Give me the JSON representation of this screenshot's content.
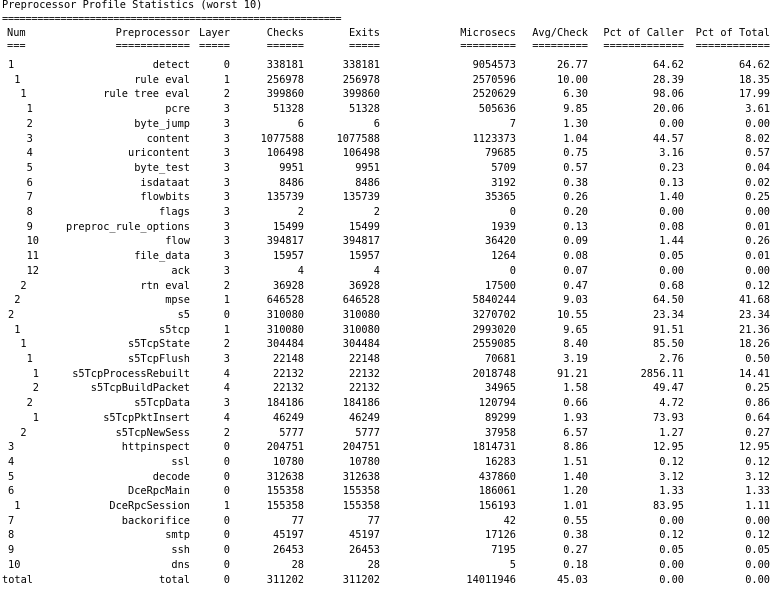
{
  "title": "Preprocessor Profile Statistics (worst 10)",
  "rule": "==========================================================",
  "headers": {
    "num": "Num",
    "name": "Preprocessor",
    "layer": "Layer",
    "checks": "Checks",
    "exits": "Exits",
    "micro": "Microsecs",
    "avg": "Avg/Check",
    "pcaller": "Pct of Caller",
    "ptotal": "Pct of Total"
  },
  "underlines": {
    "num": "===",
    "name": "============",
    "layer": "=====",
    "checks": "======",
    "exits": "=====",
    "micro": "=========",
    "avg": "=========",
    "pcaller": "=============",
    "ptotal": "============"
  },
  "rows": [
    {
      "num": "1",
      "indent": 1,
      "name": "detect",
      "layer": "0",
      "checks": "338181",
      "exits": "338181",
      "micro": "9054573",
      "avg": "26.77",
      "pcaller": "64.62",
      "ptotal": "64.62"
    },
    {
      "num": "1",
      "indent": 2,
      "name": "rule eval",
      "layer": "1",
      "checks": "256978",
      "exits": "256978",
      "micro": "2570596",
      "avg": "10.00",
      "pcaller": "28.39",
      "ptotal": "18.35"
    },
    {
      "num": "1",
      "indent": 3,
      "name": "rule tree eval",
      "layer": "2",
      "checks": "399860",
      "exits": "399860",
      "micro": "2520629",
      "avg": "6.30",
      "pcaller": "98.06",
      "ptotal": "17.99"
    },
    {
      "num": "1",
      "indent": 4,
      "name": "pcre",
      "layer": "3",
      "checks": "51328",
      "exits": "51328",
      "micro": "505636",
      "avg": "9.85",
      "pcaller": "20.06",
      "ptotal": "3.61"
    },
    {
      "num": "2",
      "indent": 4,
      "name": "byte_jump",
      "layer": "3",
      "checks": "6",
      "exits": "6",
      "micro": "7",
      "avg": "1.30",
      "pcaller": "0.00",
      "ptotal": "0.00"
    },
    {
      "num": "3",
      "indent": 4,
      "name": "content",
      "layer": "3",
      "checks": "1077588",
      "exits": "1077588",
      "micro": "1123373",
      "avg": "1.04",
      "pcaller": "44.57",
      "ptotal": "8.02"
    },
    {
      "num": "4",
      "indent": 4,
      "name": "uricontent",
      "layer": "3",
      "checks": "106498",
      "exits": "106498",
      "micro": "79685",
      "avg": "0.75",
      "pcaller": "3.16",
      "ptotal": "0.57"
    },
    {
      "num": "5",
      "indent": 4,
      "name": "byte_test",
      "layer": "3",
      "checks": "9951",
      "exits": "9951",
      "micro": "5709",
      "avg": "0.57",
      "pcaller": "0.23",
      "ptotal": "0.04"
    },
    {
      "num": "6",
      "indent": 4,
      "name": "isdataat",
      "layer": "3",
      "checks": "8486",
      "exits": "8486",
      "micro": "3192",
      "avg": "0.38",
      "pcaller": "0.13",
      "ptotal": "0.02"
    },
    {
      "num": "7",
      "indent": 4,
      "name": "flowbits",
      "layer": "3",
      "checks": "135739",
      "exits": "135739",
      "micro": "35365",
      "avg": "0.26",
      "pcaller": "1.40",
      "ptotal": "0.25"
    },
    {
      "num": "8",
      "indent": 4,
      "name": "flags",
      "layer": "3",
      "checks": "2",
      "exits": "2",
      "micro": "0",
      "avg": "0.20",
      "pcaller": "0.00",
      "ptotal": "0.00"
    },
    {
      "num": "9",
      "indent": 4,
      "name": "preproc_rule_options",
      "layer": "3",
      "checks": "15499",
      "exits": "15499",
      "micro": "1939",
      "avg": "0.13",
      "pcaller": "0.08",
      "ptotal": "0.01"
    },
    {
      "num": "10",
      "indent": 4,
      "name": "flow",
      "layer": "3",
      "checks": "394817",
      "exits": "394817",
      "micro": "36420",
      "avg": "0.09",
      "pcaller": "1.44",
      "ptotal": "0.26"
    },
    {
      "num": "11",
      "indent": 4,
      "name": "file_data",
      "layer": "3",
      "checks": "15957",
      "exits": "15957",
      "micro": "1264",
      "avg": "0.08",
      "pcaller": "0.05",
      "ptotal": "0.01"
    },
    {
      "num": "12",
      "indent": 4,
      "name": "ack",
      "layer": "3",
      "checks": "4",
      "exits": "4",
      "micro": "0",
      "avg": "0.07",
      "pcaller": "0.00",
      "ptotal": "0.00"
    },
    {
      "num": "2",
      "indent": 3,
      "name": "rtn eval",
      "layer": "2",
      "checks": "36928",
      "exits": "36928",
      "micro": "17500",
      "avg": "0.47",
      "pcaller": "0.68",
      "ptotal": "0.12"
    },
    {
      "num": "2",
      "indent": 2,
      "name": "mpse",
      "layer": "1",
      "checks": "646528",
      "exits": "646528",
      "micro": "5840244",
      "avg": "9.03",
      "pcaller": "64.50",
      "ptotal": "41.68"
    },
    {
      "num": "2",
      "indent": 1,
      "name": "s5",
      "layer": "0",
      "checks": "310080",
      "exits": "310080",
      "micro": "3270702",
      "avg": "10.55",
      "pcaller": "23.34",
      "ptotal": "23.34"
    },
    {
      "num": "1",
      "indent": 2,
      "name": "s5tcp",
      "layer": "1",
      "checks": "310080",
      "exits": "310080",
      "micro": "2993020",
      "avg": "9.65",
      "pcaller": "91.51",
      "ptotal": "21.36"
    },
    {
      "num": "1",
      "indent": 3,
      "name": "s5TcpState",
      "layer": "2",
      "checks": "304484",
      "exits": "304484",
      "micro": "2559085",
      "avg": "8.40",
      "pcaller": "85.50",
      "ptotal": "18.26"
    },
    {
      "num": "1",
      "indent": 4,
      "name": "s5TcpFlush",
      "layer": "3",
      "checks": "22148",
      "exits": "22148",
      "micro": "70681",
      "avg": "3.19",
      "pcaller": "2.76",
      "ptotal": "0.50"
    },
    {
      "num": "1",
      "indent": 5,
      "name": "s5TcpProcessRebuilt",
      "layer": "4",
      "checks": "22132",
      "exits": "22132",
      "micro": "2018748",
      "avg": "91.21",
      "pcaller": "2856.11",
      "ptotal": "14.41"
    },
    {
      "num": "2",
      "indent": 5,
      "name": "s5TcpBuildPacket",
      "layer": "4",
      "checks": "22132",
      "exits": "22132",
      "micro": "34965",
      "avg": "1.58",
      "pcaller": "49.47",
      "ptotal": "0.25"
    },
    {
      "num": "2",
      "indent": 4,
      "name": "s5TcpData",
      "layer": "3",
      "checks": "184186",
      "exits": "184186",
      "micro": "120794",
      "avg": "0.66",
      "pcaller": "4.72",
      "ptotal": "0.86"
    },
    {
      "num": "1",
      "indent": 5,
      "name": "s5TcpPktInsert",
      "layer": "4",
      "checks": "46249",
      "exits": "46249",
      "micro": "89299",
      "avg": "1.93",
      "pcaller": "73.93",
      "ptotal": "0.64"
    },
    {
      "num": "2",
      "indent": 3,
      "name": "s5TcpNewSess",
      "layer": "2",
      "checks": "5777",
      "exits": "5777",
      "micro": "37958",
      "avg": "6.57",
      "pcaller": "1.27",
      "ptotal": "0.27"
    },
    {
      "num": "3",
      "indent": 1,
      "name": "httpinspect",
      "layer": "0",
      "checks": "204751",
      "exits": "204751",
      "micro": "1814731",
      "avg": "8.86",
      "pcaller": "12.95",
      "ptotal": "12.95"
    },
    {
      "num": "4",
      "indent": 1,
      "name": "ssl",
      "layer": "0",
      "checks": "10780",
      "exits": "10780",
      "micro": "16283",
      "avg": "1.51",
      "pcaller": "0.12",
      "ptotal": "0.12"
    },
    {
      "num": "5",
      "indent": 1,
      "name": "decode",
      "layer": "0",
      "checks": "312638",
      "exits": "312638",
      "micro": "437860",
      "avg": "1.40",
      "pcaller": "3.12",
      "ptotal": "3.12"
    },
    {
      "num": "6",
      "indent": 1,
      "name": "DceRpcMain",
      "layer": "0",
      "checks": "155358",
      "exits": "155358",
      "micro": "186061",
      "avg": "1.20",
      "pcaller": "1.33",
      "ptotal": "1.33"
    },
    {
      "num": "1",
      "indent": 2,
      "name": "DceRpcSession",
      "layer": "1",
      "checks": "155358",
      "exits": "155358",
      "micro": "156193",
      "avg": "1.01",
      "pcaller": "83.95",
      "ptotal": "1.11"
    },
    {
      "num": "7",
      "indent": 1,
      "name": "backorifice",
      "layer": "0",
      "checks": "77",
      "exits": "77",
      "micro": "42",
      "avg": "0.55",
      "pcaller": "0.00",
      "ptotal": "0.00"
    },
    {
      "num": "8",
      "indent": 1,
      "name": "smtp",
      "layer": "0",
      "checks": "45197",
      "exits": "45197",
      "micro": "17126",
      "avg": "0.38",
      "pcaller": "0.12",
      "ptotal": "0.12"
    },
    {
      "num": "9",
      "indent": 1,
      "name": "ssh",
      "layer": "0",
      "checks": "26453",
      "exits": "26453",
      "micro": "7195",
      "avg": "0.27",
      "pcaller": "0.05",
      "ptotal": "0.05"
    },
    {
      "num": "10",
      "indent": 1,
      "name": "dns",
      "layer": "0",
      "checks": "28",
      "exits": "28",
      "micro": "5",
      "avg": "0.18",
      "pcaller": "0.00",
      "ptotal": "0.00"
    },
    {
      "num": "total",
      "indent": 1,
      "name": "total",
      "layer": "0",
      "checks": "311202",
      "exits": "311202",
      "micro": "14011946",
      "avg": "45.03",
      "pcaller": "0.00",
      "ptotal": "0.00"
    }
  ]
}
